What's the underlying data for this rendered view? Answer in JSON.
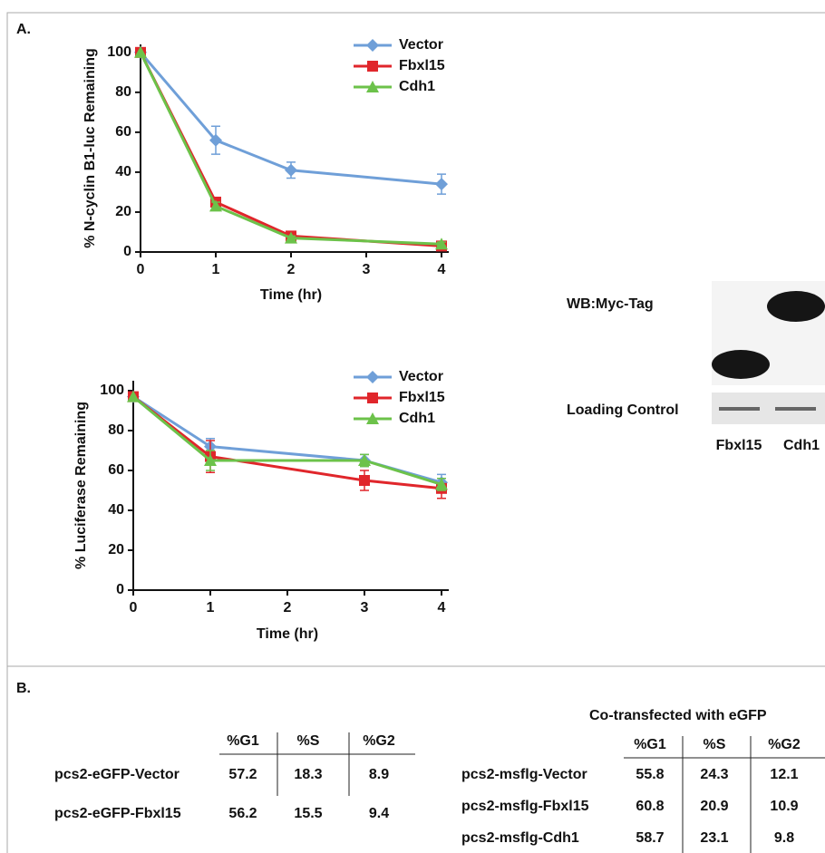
{
  "panels": {
    "a": "A.",
    "b": "B."
  },
  "chart_data": [
    {
      "type": "line",
      "ylabel": "% N-cyclin B1-luc Remaining",
      "xlabel": "Time (hr)",
      "x": [
        0,
        1,
        2,
        4
      ],
      "xlim": [
        0,
        4
      ],
      "xticks": [
        0,
        1,
        2,
        3,
        4
      ],
      "ylim": [
        0,
        104
      ],
      "yticks": [
        0,
        20,
        40,
        60,
        80,
        100
      ],
      "legend": "upper right",
      "series": [
        {
          "name": "Vector",
          "color": "#6f9fd8",
          "marker": "diamond",
          "values": [
            100,
            56,
            41,
            34
          ],
          "errors": [
            null,
            7,
            4,
            5
          ]
        },
        {
          "name": "Fbxl15",
          "color": "#e0262b",
          "marker": "square",
          "values": [
            100,
            25,
            8,
            3
          ],
          "errors": [
            null,
            2,
            1,
            1
          ]
        },
        {
          "name": "Cdh1",
          "color": "#6cc24a",
          "marker": "triangle",
          "values": [
            100,
            23,
            7,
            4
          ],
          "errors": [
            null,
            2,
            1,
            1
          ]
        }
      ]
    },
    {
      "type": "line",
      "ylabel": "% Luciferase Remaining",
      "xlabel": "Time (hr)",
      "x": [
        0,
        1,
        3,
        4
      ],
      "xlim": [
        0,
        4
      ],
      "xticks": [
        0,
        1,
        2,
        3,
        4
      ],
      "ylim": [
        0,
        105
      ],
      "yticks": [
        0,
        20,
        40,
        60,
        80,
        100
      ],
      "legend": "upper right",
      "series": [
        {
          "name": "Vector",
          "color": "#6f9fd8",
          "marker": "diamond",
          "values": [
            97,
            72,
            65,
            54
          ],
          "errors": [
            null,
            4,
            3,
            4
          ]
        },
        {
          "name": "Fbxl15",
          "color": "#e0262b",
          "marker": "square",
          "values": [
            97,
            67,
            55,
            51
          ],
          "errors": [
            null,
            8,
            5,
            5
          ]
        },
        {
          "name": "Cdh1",
          "color": "#6cc24a",
          "marker": "triangle",
          "values": [
            97,
            65,
            65,
            53
          ],
          "errors": [
            null,
            5,
            3,
            3
          ]
        }
      ]
    }
  ],
  "blot": {
    "probe": "WB:Myc-Tag",
    "control": "Loading Control",
    "lanes": [
      "Fbxl15",
      "Cdh1"
    ]
  },
  "tables": [
    {
      "columns": [
        "%G1",
        "%S",
        "%G2"
      ],
      "rows": [
        {
          "label": "pcs2-eGFP-Vector",
          "values": [
            57.2,
            18.3,
            8.9
          ]
        },
        {
          "label": "pcs2-eGFP-Fbxl15",
          "values": [
            56.2,
            15.5,
            9.4
          ]
        }
      ]
    },
    {
      "caption": "Co-transfected with eGFP",
      "columns": [
        "%G1",
        "%S",
        "%G2"
      ],
      "rows": [
        {
          "label": "pcs2-msflg-Vector",
          "values": [
            55.8,
            24.3,
            12.1
          ]
        },
        {
          "label": "pcs2-msflg-Fbxl15",
          "values": [
            60.8,
            20.9,
            10.9
          ]
        },
        {
          "label": "pcs2-msflg-Cdh1",
          "values": [
            58.7,
            23.1,
            9.8
          ]
        }
      ]
    }
  ]
}
